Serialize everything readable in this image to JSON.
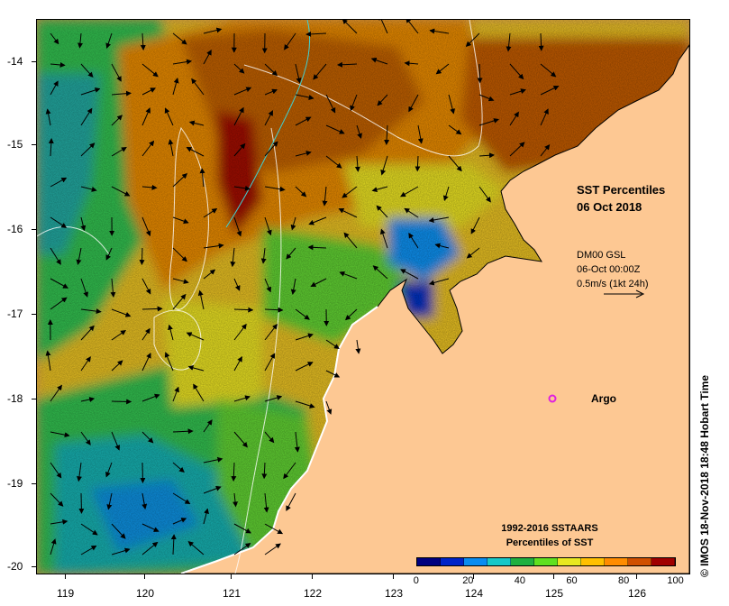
{
  "map": {
    "type": "sea-surface-temperature-percentile-map",
    "title_lines": [
      "SST Percentiles",
      "06 Oct 2018"
    ],
    "vector_info_lines": [
      "DM00 GSL",
      "06-Oct 00:00Z",
      "0.5m/s (1kt 24h)"
    ],
    "marker_label": "Argo",
    "marker_color": "#e020e0",
    "credit": "© IMOS 18-Nov-2018 18:48 Hobart Time",
    "longitude_ticks": [
      "119",
      "120",
      "121",
      "122",
      "123",
      "124",
      "125",
      "126"
    ],
    "latitude_ticks": [
      "-14",
      "-15",
      "-16",
      "-17",
      "-18",
      "-19",
      "-20"
    ],
    "land_color": "#fdc893",
    "colorbar": {
      "title_lines": [
        "1992-2016 SSTAARS",
        "Percentiles of SST"
      ],
      "tick_labels": [
        "0",
        "20",
        "40",
        "60",
        "80",
        "100"
      ],
      "colors": [
        "#00007f",
        "#0024c8",
        "#0a8cf0",
        "#18c8c8",
        "#20b040",
        "#60e020",
        "#e8e820",
        "#ffc000",
        "#ff8c00",
        "#d05000",
        "#a00000"
      ]
    }
  }
}
